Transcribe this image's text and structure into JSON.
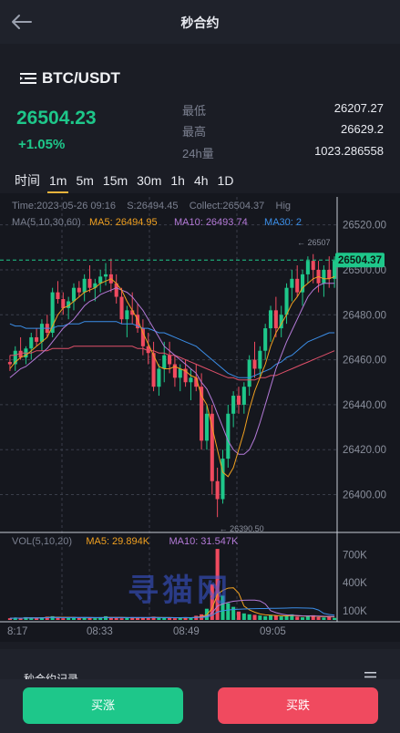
{
  "header": {
    "title": "秒合约"
  },
  "pair": {
    "name": "BTC/USDT"
  },
  "ticker": {
    "price": "26504.23",
    "change": "+1.05%",
    "low_label": "最低",
    "low_value": "26207.27",
    "high_label": "最高",
    "high_value": "26629.2",
    "vol_label": "24h量",
    "vol_value": "1023.286558"
  },
  "timeframes": [
    "时间",
    "1m",
    "5m",
    "15m",
    "30m",
    "1h",
    "4h",
    "1D"
  ],
  "active_timeframe": "1m",
  "chart_info": {
    "time": "Time:2023-05-26 09:16",
    "s": "S:26494.45",
    "collect": "Collect:26504.37",
    "hig": "Hig",
    "ma_label": "MA(5,10,30,60)",
    "ma5": "MA5: 26494.95",
    "ma10": "MA10: 26493.74",
    "ma30": "MA30: 2",
    "vol_label": "VOL(5,10,20)",
    "vol_ma5": "MA5: 29.894K",
    "vol_ma10": "MA10: 31.547K",
    "high_mark": "26507",
    "low_mark": "26390.50",
    "last_price": "26504.37"
  },
  "chart_data": {
    "type": "candlestick",
    "y_ticks": [
      "26520.00",
      "26500.00",
      "26480.00",
      "26460.00",
      "26440.00",
      "26420.00",
      "26400.00"
    ],
    "vol_ticks": [
      "700K",
      "400K",
      "100K"
    ],
    "x_ticks": [
      "8:17",
      "08:33",
      "08:49",
      "09:05"
    ],
    "ylim": [
      26384,
      26530
    ],
    "candles": [
      [
        26459,
        26462,
        26455,
        26458
      ],
      [
        26458,
        26466,
        26455,
        26464
      ],
      [
        26464,
        26470,
        26460,
        26461
      ],
      [
        26461,
        26466,
        26458,
        26465
      ],
      [
        26465,
        26472,
        26460,
        26470
      ],
      [
        26470,
        26474,
        26466,
        26468
      ],
      [
        26468,
        26478,
        26464,
        26476
      ],
      [
        26476,
        26480,
        26470,
        26472
      ],
      [
        26472,
        26492,
        26470,
        26490
      ],
      [
        26490,
        26495,
        26485,
        26487
      ],
      [
        26487,
        26490,
        26480,
        26483
      ],
      [
        26483,
        26488,
        26478,
        26486
      ],
      [
        26486,
        26494,
        26482,
        26492
      ],
      [
        26492,
        26495,
        26488,
        26490
      ],
      [
        26490,
        26498,
        26486,
        26496
      ],
      [
        26496,
        26502,
        26490,
        26492
      ],
      [
        26492,
        26496,
        26486,
        26494
      ],
      [
        26494,
        26500,
        26490,
        26497
      ],
      [
        26497,
        26503,
        26493,
        26498
      ],
      [
        26498,
        26505,
        26490,
        26494
      ],
      [
        26494,
        26498,
        26485,
        26488
      ],
      [
        26488,
        26492,
        26476,
        26478
      ],
      [
        26478,
        26484,
        26470,
        26482
      ],
      [
        26482,
        26490,
        26476,
        26480
      ],
      [
        26480,
        26485,
        26472,
        26474
      ],
      [
        26474,
        26478,
        26462,
        26466
      ],
      [
        26466,
        26472,
        26458,
        26463
      ],
      [
        26463,
        26468,
        26446,
        26448
      ],
      [
        26448,
        26458,
        26444,
        26456
      ],
      [
        26456,
        26468,
        26450,
        26462
      ],
      [
        26462,
        26468,
        26454,
        26458
      ],
      [
        26458,
        26462,
        26448,
        26452
      ],
      [
        26452,
        26458,
        26446,
        26456
      ],
      [
        26456,
        26460,
        26448,
        26450
      ],
      [
        26450,
        26456,
        26442,
        26452
      ],
      [
        26452,
        26458,
        26446,
        26448
      ],
      [
        26448,
        26454,
        26420,
        26424
      ],
      [
        26424,
        26440,
        26420,
        26436
      ],
      [
        26436,
        26440,
        26400,
        26406
      ],
      [
        26406,
        26412,
        26390,
        26398
      ],
      [
        26398,
        26420,
        26396,
        26416
      ],
      [
        26416,
        26440,
        26412,
        26436
      ],
      [
        26436,
        26446,
        26430,
        26444
      ],
      [
        26444,
        26448,
        26436,
        26440
      ],
      [
        26440,
        26450,
        26436,
        26448
      ],
      [
        26448,
        26462,
        26444,
        26460
      ],
      [
        26460,
        26468,
        26452,
        26456
      ],
      [
        26456,
        26466,
        26452,
        26464
      ],
      [
        26464,
        26476,
        26460,
        26474
      ],
      [
        26474,
        26484,
        26468,
        26482
      ],
      [
        26482,
        26488,
        26470,
        26474
      ],
      [
        26474,
        26484,
        26470,
        26480
      ],
      [
        26480,
        26494,
        26476,
        26492
      ],
      [
        26492,
        26500,
        26486,
        26496
      ],
      [
        26496,
        26502,
        26488,
        26490
      ],
      [
        26490,
        26500,
        26484,
        26498
      ],
      [
        26498,
        26506,
        26494,
        26504
      ],
      [
        26504,
        26507,
        26494,
        26500
      ],
      [
        26500,
        26504,
        26490,
        26494
      ],
      [
        26494,
        26502,
        26488,
        26500
      ],
      [
        26500,
        26506,
        26492,
        26496
      ],
      [
        26496,
        26506,
        26492,
        26504
      ]
    ],
    "volumes": [
      18,
      22,
      15,
      30,
      25,
      20,
      28,
      35,
      40,
      22,
      18,
      25,
      30,
      20,
      26,
      22,
      18,
      30,
      40,
      25,
      20,
      18,
      22,
      30,
      26,
      20,
      24,
      35,
      28,
      22,
      20,
      18,
      25,
      30,
      22,
      45,
      60,
      120,
      380,
      760,
      260,
      180,
      140,
      90,
      70,
      60,
      55,
      48,
      40,
      52,
      45,
      38,
      42,
      60,
      35,
      28,
      40,
      50,
      30,
      26,
      34,
      22
    ],
    "ma5": [
      26456,
      26459,
      26461,
      26462,
      26464,
      26466,
      26468,
      26470,
      26475,
      26480,
      26483,
      26484,
      26486,
      26488,
      26490,
      26491,
      26492,
      26494,
      26495,
      26496,
      26494,
      26491,
      26486,
      26482,
      26478,
      26472,
      26467,
      26462,
      26457,
      26456,
      26456,
      26457,
      26456,
      26455,
      26453,
      26452,
      26444,
      26440,
      26430,
      26420,
      26410,
      26408,
      26412,
      26420,
      26428,
      26438,
      26446,
      26452,
      26458,
      26466,
      26472,
      26476,
      26480,
      26485,
      26488,
      26492,
      26494,
      26496,
      26497,
      26496,
      26496,
      26497
    ],
    "ma10": [
      26452,
      26454,
      26456,
      26457,
      26459,
      26461,
      26463,
      26465,
      26468,
      26471,
      26474,
      26476,
      26478,
      26481,
      26484,
      26486,
      26487,
      26489,
      26490,
      26491,
      26492,
      26491,
      26490,
      26488,
      26485,
      26482,
      26478,
      26474,
      26470,
      26466,
      26464,
      26462,
      26460,
      26458,
      26456,
      26454,
      26450,
      26447,
      26442,
      26436,
      26430,
      26424,
      26420,
      26418,
      26418,
      26420,
      26425,
      26432,
      26440,
      26448,
      26456,
      26462,
      26468,
      26473,
      26478,
      26483,
      26488,
      26491,
      26493,
      26494,
      26494,
      26494
    ],
    "ma30": [
      26476,
      26475,
      26475,
      26474,
      26474,
      26474,
      26474,
      26474,
      26474,
      26475,
      26475,
      26476,
      26476,
      26476,
      26477,
      26477,
      26477,
      26477,
      26477,
      26477,
      26477,
      26476,
      26476,
      26476,
      26475,
      26474,
      26474,
      26473,
      26472,
      26472,
      26471,
      26470,
      26469,
      26468,
      26467,
      26466,
      26464,
      26462,
      26460,
      26458,
      26456,
      26454,
      26453,
      26452,
      26452,
      26452,
      26453,
      26454,
      26455,
      26456,
      26458,
      26459,
      26461,
      26462,
      26464,
      26466,
      26468,
      26469,
      26470,
      26471,
      26472,
      26472
    ],
    "ma60": [
      26462,
      26462,
      26463,
      26463,
      26463,
      26464,
      26464,
      26464,
      26465,
      26465,
      26465,
      26465,
      26466,
      26466,
      26466,
      26466,
      26466,
      26466,
      26466,
      26466,
      26466,
      26466,
      26466,
      26466,
      26465,
      26465,
      26464,
      26464,
      26463,
      26463,
      26462,
      26462,
      26461,
      26460,
      26459,
      26458,
      26457,
      26456,
      26455,
      26454,
      26453,
      26452,
      26452,
      26451,
      26451,
      26451,
      26451,
      26452,
      26452,
      26453,
      26453,
      26454,
      26455,
      26456,
      26457,
      26458,
      26459,
      26460,
      26461,
      26462,
      26463,
      26464
    ]
  },
  "records": {
    "label": "秒合约记录"
  },
  "actions": {
    "buy": "买涨",
    "sell": "买跌"
  },
  "colors": {
    "up": "#1ec78a",
    "down": "#f04a5f",
    "ma5": "#f0a020",
    "ma10": "#b47ad8",
    "ma30": "#3b8ee8",
    "ma60": "#e0506a"
  },
  "watermark": "寻猫网"
}
